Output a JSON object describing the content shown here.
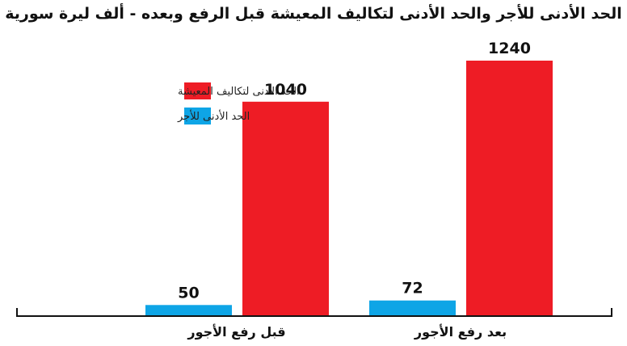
{
  "chart_data": {
    "type": "bar",
    "title": "الحد الأدنى للأجر والحد الأدنى لتكاليف المعيشة قبل الرفع وبعده - ألف ليرة سورية",
    "categories": [
      "قبل رفع الأجور",
      "بعد رفع الأجور"
    ],
    "series": [
      {
        "name": "الحد الأدنى للأجر",
        "values": [
          50,
          72
        ],
        "color": "#0ea5e6"
      },
      {
        "name": "الحد الأدنى لتكاليف المعيشة",
        "values": [
          1040,
          1240
        ],
        "color": "#ee1c25"
      }
    ],
    "ylim": [
      0,
      1240
    ],
    "grid": false,
    "legend": "top-left"
  }
}
